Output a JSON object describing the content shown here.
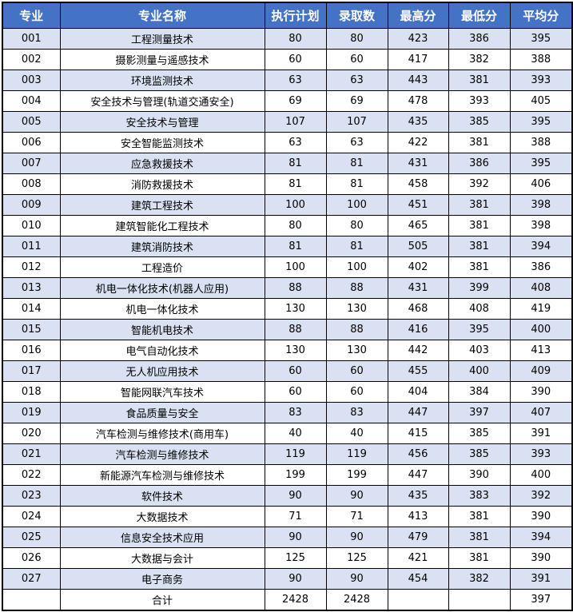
{
  "colors": {
    "header_bg": "#4472C4",
    "header_text": "#FFFFFF",
    "stripe": "#D9E1F2"
  },
  "table": {
    "headers": [
      "专业",
      "专业名称",
      "执行计划",
      "录取数",
      "最高分",
      "最低分",
      "平均分"
    ],
    "rows": [
      [
        "001",
        "工程测量技术",
        "80",
        "80",
        "423",
        "386",
        "395"
      ],
      [
        "002",
        "摄影测量与遥感技术",
        "60",
        "60",
        "417",
        "382",
        "388"
      ],
      [
        "003",
        "环境监测技术",
        "63",
        "63",
        "443",
        "381",
        "393"
      ],
      [
        "004",
        "安全技术与管理(轨道交通安全)",
        "69",
        "69",
        "478",
        "393",
        "405"
      ],
      [
        "005",
        "安全技术与管理",
        "107",
        "107",
        "435",
        "385",
        "395"
      ],
      [
        "006",
        "安全智能监测技术",
        "63",
        "63",
        "422",
        "381",
        "388"
      ],
      [
        "007",
        "应急救援技术",
        "81",
        "81",
        "431",
        "386",
        "395"
      ],
      [
        "008",
        "消防救援技术",
        "81",
        "81",
        "458",
        "392",
        "406"
      ],
      [
        "009",
        "建筑工程技术",
        "100",
        "100",
        "451",
        "381",
        "398"
      ],
      [
        "010",
        "建筑智能化工程技术",
        "80",
        "80",
        "465",
        "381",
        "398"
      ],
      [
        "011",
        "建筑消防技术",
        "81",
        "81",
        "505",
        "381",
        "394"
      ],
      [
        "012",
        "工程造价",
        "100",
        "100",
        "402",
        "381",
        "386"
      ],
      [
        "013",
        "机电一体化技术(机器人应用)",
        "88",
        "88",
        "431",
        "399",
        "408"
      ],
      [
        "014",
        "机电一体化技术",
        "130",
        "130",
        "468",
        "408",
        "419"
      ],
      [
        "015",
        "智能机电技术",
        "88",
        "88",
        "416",
        "395",
        "400"
      ],
      [
        "016",
        "电气自动化技术",
        "130",
        "130",
        "442",
        "403",
        "413"
      ],
      [
        "017",
        "无人机应用技术",
        "60",
        "60",
        "455",
        "400",
        "409"
      ],
      [
        "018",
        "智能网联汽车技术",
        "60",
        "60",
        "404",
        "384",
        "390"
      ],
      [
        "019",
        "食品质量与安全",
        "83",
        "83",
        "447",
        "397",
        "407"
      ],
      [
        "020",
        "汽车检测与维修技术(商用车)",
        "40",
        "40",
        "415",
        "385",
        "391"
      ],
      [
        "021",
        "汽车检测与维修技术",
        "119",
        "119",
        "456",
        "385",
        "393"
      ],
      [
        "022",
        "新能源汽车检测与维修技术",
        "199",
        "199",
        "447",
        "390",
        "400"
      ],
      [
        "023",
        "软件技术",
        "90",
        "90",
        "435",
        "383",
        "392"
      ],
      [
        "024",
        "大数据技术",
        "71",
        "71",
        "413",
        "381",
        "390"
      ],
      [
        "025",
        "信息安全技术应用",
        "90",
        "90",
        "479",
        "381",
        "394"
      ],
      [
        "026",
        "大数据与会计",
        "125",
        "125",
        "421",
        "381",
        "390"
      ],
      [
        "027",
        "电子商务",
        "90",
        "90",
        "454",
        "382",
        "391"
      ]
    ],
    "total": [
      "",
      "合计",
      "2428",
      "2428",
      "",
      "",
      "397"
    ]
  }
}
